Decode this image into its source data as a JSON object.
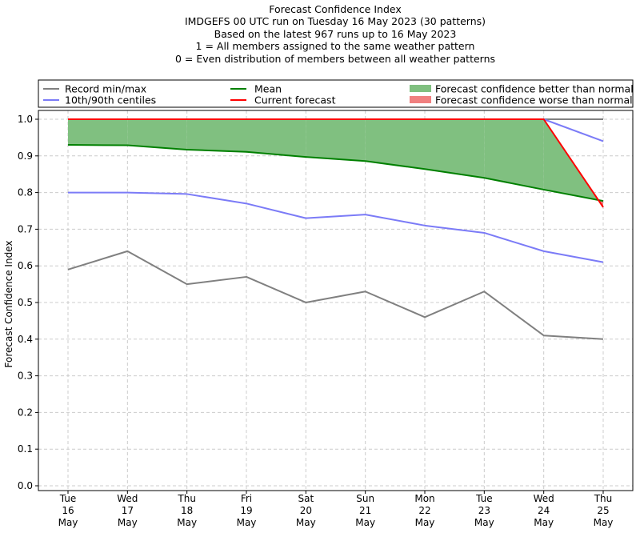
{
  "titles": {
    "line1": "Forecast Confidence Index",
    "line2": "IMDGEFS 00 UTC run on Tuesday 16 May 2023 (30 patterns)",
    "line3": "Based on the latest 967 runs up to 16 May 2023",
    "line4": "1 = All members assigned to the same weather pattern",
    "line5": "0 = Even distribution of members between all weather patterns"
  },
  "legend": {
    "record": "Record min/max",
    "centiles": "10th/90th centiles",
    "mean": "Mean",
    "current": "Current forecast",
    "better": "Forecast confidence better than normal",
    "worse": "Forecast confidence worse than normal"
  },
  "colors": {
    "record": "#808080",
    "centiles": "#7b7bf7",
    "mean": "#008000",
    "current": "#ff0000",
    "better_fill": "#80c080",
    "worse_fill": "#f08080",
    "grid": "#cccccc"
  },
  "chart_data": {
    "type": "line",
    "title": "Forecast Confidence Index",
    "ylabel": "Forecast Confidence Index",
    "ylim": [
      0,
      1.0
    ],
    "yticks": [
      "0.0",
      "0.1",
      "0.2",
      "0.3",
      "0.4",
      "0.5",
      "0.6",
      "0.7",
      "0.8",
      "0.9",
      "1.0"
    ],
    "grid": true,
    "legend_position": "top",
    "categories": [
      [
        "Tue",
        "16",
        "May"
      ],
      [
        "Wed",
        "17",
        "May"
      ],
      [
        "Thu",
        "18",
        "May"
      ],
      [
        "Fri",
        "19",
        "May"
      ],
      [
        "Sat",
        "20",
        "May"
      ],
      [
        "Sun",
        "21",
        "May"
      ],
      [
        "Mon",
        "22",
        "May"
      ],
      [
        "Tue",
        "23",
        "May"
      ],
      [
        "Wed",
        "24",
        "May"
      ],
      [
        "Thu",
        "25",
        "May"
      ]
    ],
    "series": [
      {
        "name": "Record max",
        "key": "record",
        "values": [
          1.0,
          1.0,
          1.0,
          1.0,
          1.0,
          1.0,
          1.0,
          1.0,
          1.0,
          1.0
        ]
      },
      {
        "name": "Record min",
        "key": "record",
        "values": [
          0.59,
          0.64,
          0.55,
          0.57,
          0.5,
          0.53,
          0.46,
          0.53,
          0.41,
          0.4
        ]
      },
      {
        "name": "90th centile",
        "key": "centiles",
        "values": [
          1.0,
          1.0,
          1.0,
          1.0,
          1.0,
          1.0,
          1.0,
          1.0,
          1.0,
          0.94
        ]
      },
      {
        "name": "10th centile",
        "key": "centiles",
        "values": [
          0.8,
          0.8,
          0.796,
          0.77,
          0.73,
          0.74,
          0.71,
          0.69,
          0.64,
          0.61
        ]
      },
      {
        "name": "Mean",
        "key": "mean",
        "values": [
          0.93,
          0.929,
          0.917,
          0.911,
          0.897,
          0.886,
          0.864,
          0.84,
          0.808,
          0.777
        ]
      },
      {
        "name": "Current forecast",
        "key": "current",
        "values": [
          1.0,
          1.0,
          1.0,
          1.0,
          1.0,
          1.0,
          1.0,
          1.0,
          1.0,
          0.76
        ]
      }
    ]
  }
}
